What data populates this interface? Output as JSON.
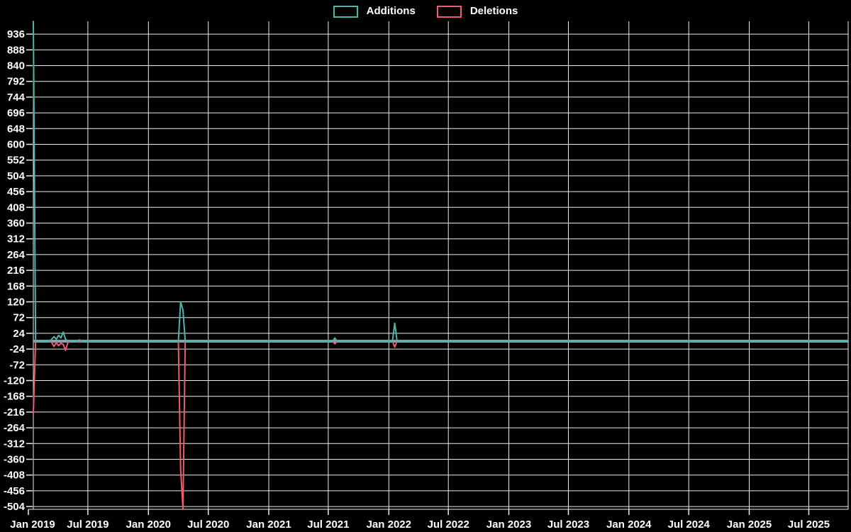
{
  "chart_data": {
    "type": "line",
    "title": "",
    "legend": [
      {
        "label": "Additions",
        "color": "#4db6ac"
      },
      {
        "label": "Deletions",
        "color": "#ef5b70"
      }
    ],
    "x_tick_labels": [
      "Jan 2019",
      "Jul 2019",
      "Jan 2020",
      "Jul 2020",
      "Jan 2021",
      "Jul 2021",
      "Jan 2022",
      "Jul 2022",
      "Jan 2023",
      "Jul 2023",
      "Jan 2024",
      "Jul 2024",
      "Jan 2025",
      "Jul 2025"
    ],
    "x_tick_day_offsets": [
      0,
      181,
      365,
      547,
      731,
      912,
      1096,
      1277,
      1461,
      1642,
      1826,
      2008,
      2192,
      2373
    ],
    "x_start_date": "2019-01-01",
    "y_tick_values": [
      936,
      888,
      840,
      792,
      744,
      696,
      648,
      600,
      552,
      504,
      456,
      408,
      360,
      312,
      264,
      216,
      168,
      120,
      72,
      24,
      -24,
      -72,
      -120,
      -168,
      -216,
      -264,
      -312,
      -360,
      -408,
      -456,
      -504
    ],
    "ylim": [
      -530,
      975
    ],
    "grid": true,
    "legend_position": "top-center",
    "colors": {
      "background": "#000000",
      "grid_line": "#ededed",
      "axis_text": "#ffffff",
      "zero_line": "#8aa2ab",
      "additions": "#4db6ac",
      "deletions": "#ef5b70"
    },
    "week_day_range": [
      15,
      2493
    ],
    "week_step_days": 7,
    "series": [
      {
        "name": "Additions",
        "color": "#4db6ac",
        "default": 0,
        "points": [
          [
            15,
            975
          ],
          [
            71,
            6
          ],
          [
            78,
            14
          ],
          [
            85,
            6
          ],
          [
            92,
            18
          ],
          [
            99,
            10
          ],
          [
            106,
            28
          ],
          [
            113,
            6
          ],
          [
            120,
            0
          ],
          [
            155,
            4
          ],
          [
            463,
            120
          ],
          [
            470,
            95
          ],
          [
            932,
            10
          ],
          [
            1114,
            55
          ]
        ]
      },
      {
        "name": "Deletions",
        "color": "#ef5b70",
        "default": 0,
        "points": [
          [
            15,
            -220
          ],
          [
            71,
            -4
          ],
          [
            78,
            -16
          ],
          [
            85,
            -4
          ],
          [
            92,
            -14
          ],
          [
            99,
            -6
          ],
          [
            106,
            -10
          ],
          [
            113,
            -28
          ],
          [
            120,
            -4
          ],
          [
            155,
            -3
          ],
          [
            463,
            -390
          ],
          [
            470,
            -510
          ],
          [
            932,
            -8
          ],
          [
            1114,
            -18
          ]
        ]
      }
    ]
  }
}
